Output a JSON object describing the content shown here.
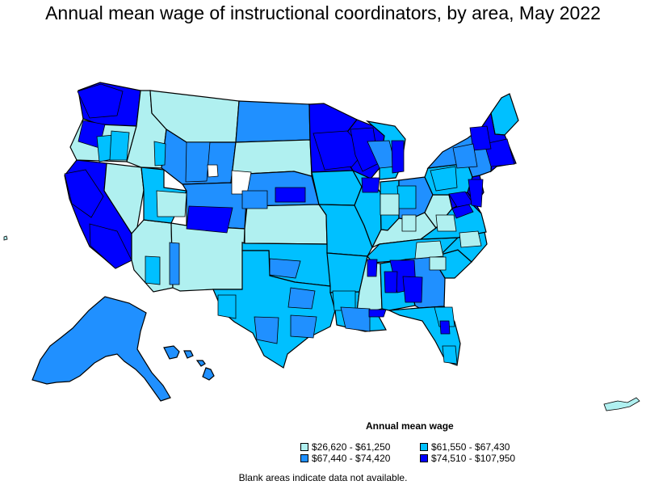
{
  "title": "Annual mean wage of instructional coordinators, by area, May 2022",
  "legend": {
    "title": "Annual mean wage",
    "items": [
      {
        "label": "$26,620 - $61,250",
        "color": "#b0f0f0"
      },
      {
        "label": "$61,550 - $67,430",
        "color": "#00c0ff"
      },
      {
        "label": "$67,440 - $74,420",
        "color": "#2090ff"
      },
      {
        "label": "$74,510 - $107,950",
        "color": "#0000ff"
      }
    ]
  },
  "note": "Blank areas indicate data not available.",
  "map": {
    "outline_color": "#000000",
    "blank_color": "#ffffff",
    "regions": [
      {
        "name": "Alaska",
        "class": 2
      },
      {
        "name": "Hawaii",
        "class": 2
      },
      {
        "name": "Washington",
        "class": 3
      },
      {
        "name": "Oregon",
        "class": 0
      },
      {
        "name": "California",
        "class": 3
      },
      {
        "name": "Nevada",
        "class": 0
      },
      {
        "name": "Arizona",
        "class": 0
      },
      {
        "name": "Utah",
        "class": 1
      },
      {
        "name": "Idaho",
        "class": 0
      },
      {
        "name": "Montana",
        "class": 0
      },
      {
        "name": "Wyoming",
        "class": 2
      },
      {
        "name": "Colorado",
        "class": 2
      },
      {
        "name": "New Mexico",
        "class": 0
      },
      {
        "name": "North Dakota",
        "class": 2
      },
      {
        "name": "South Dakota",
        "class": 0
      },
      {
        "name": "Nebraska",
        "class": 2
      },
      {
        "name": "Kansas",
        "class": 0
      },
      {
        "name": "Oklahoma",
        "class": 1
      },
      {
        "name": "Texas",
        "class": 1
      },
      {
        "name": "Minnesota",
        "class": 3
      },
      {
        "name": "Iowa",
        "class": 1
      },
      {
        "name": "Missouri",
        "class": 1
      },
      {
        "name": "Arkansas",
        "class": 1
      },
      {
        "name": "Louisiana",
        "class": 1
      },
      {
        "name": "Wisconsin",
        "class": 3
      },
      {
        "name": "Illinois",
        "class": 1
      },
      {
        "name": "Michigan",
        "class": 1
      },
      {
        "name": "Indiana",
        "class": 1
      },
      {
        "name": "Ohio",
        "class": 2
      },
      {
        "name": "Kentucky",
        "class": 0
      },
      {
        "name": "Tennessee",
        "class": 1
      },
      {
        "name": "Mississippi",
        "class": 0
      },
      {
        "name": "Alabama",
        "class": 1
      },
      {
        "name": "Georgia",
        "class": 2
      },
      {
        "name": "Florida",
        "class": 1
      },
      {
        "name": "South Carolina",
        "class": 1
      },
      {
        "name": "North Carolina",
        "class": 1
      },
      {
        "name": "Virginia",
        "class": 1
      },
      {
        "name": "West Virginia",
        "class": 0
      },
      {
        "name": "Pennsylvania",
        "class": 1
      },
      {
        "name": "New York",
        "class": 2
      },
      {
        "name": "Maine",
        "class": 1
      },
      {
        "name": "Massachusetts",
        "class": 3
      },
      {
        "name": "New Jersey",
        "class": 3
      },
      {
        "name": "Maryland",
        "class": 3
      }
    ]
  }
}
